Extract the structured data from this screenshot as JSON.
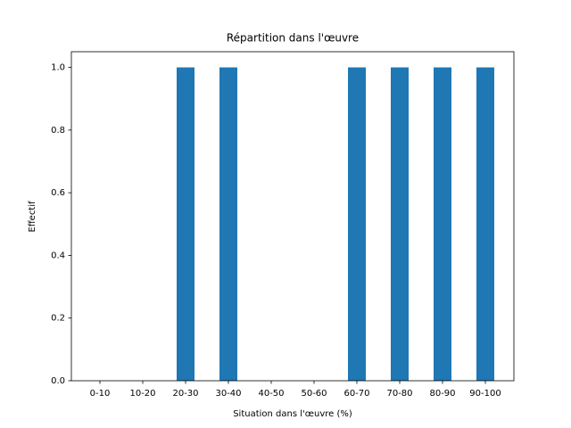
{
  "chart_data": {
    "type": "bar",
    "title": "Répartition dans l'œuvre",
    "xlabel": "Situation dans l'œuvre (%)",
    "ylabel": "Effectif",
    "categories": [
      "0-10",
      "10-20",
      "20-30",
      "30-40",
      "40-50",
      "50-60",
      "60-70",
      "70-80",
      "80-90",
      "90-100"
    ],
    "values": [
      0,
      0,
      1,
      1,
      0,
      0,
      1,
      1,
      1,
      1
    ],
    "color": "#1f77b4",
    "ylim": [
      0,
      1.05
    ],
    "yticks": [
      {
        "value": 0,
        "label": "0.0"
      },
      {
        "value": 0.2,
        "label": "0.2"
      },
      {
        "value": 0.4,
        "label": "0.4"
      },
      {
        "value": 0.6,
        "label": "0.6"
      },
      {
        "value": 0.8,
        "label": "0.8"
      },
      {
        "value": 1,
        "label": "1.0"
      }
    ],
    "grid": false
  }
}
